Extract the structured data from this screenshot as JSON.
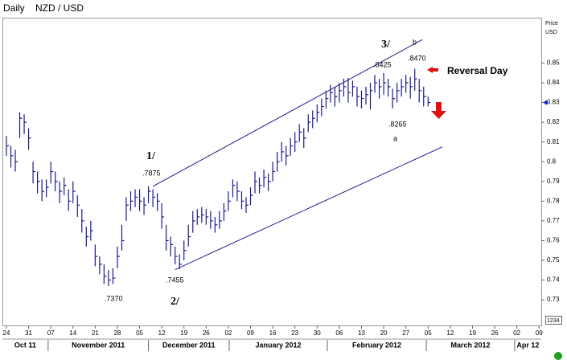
{
  "chart_data": {
    "type": "ohlc",
    "period": "Daily",
    "title": "NZD / USD",
    "y_label": [
      "Price",
      "USD"
    ],
    "widget_label": "1234",
    "color": "#1a1a8c",
    "xlim": [
      -0.9,
      120.5
    ],
    "xticks": [
      {
        "value": 0,
        "label": "24"
      },
      {
        "value": 5,
        "label": "31"
      },
      {
        "value": 10,
        "label": "07"
      },
      {
        "value": 15,
        "label": "14"
      },
      {
        "value": 20,
        "label": "21"
      },
      {
        "value": 25,
        "label": "28"
      },
      {
        "value": 30,
        "label": "05"
      },
      {
        "value": 35,
        "label": "12"
      },
      {
        "value": 40,
        "label": "19"
      },
      {
        "value": 45,
        "label": "26"
      },
      {
        "value": 50,
        "label": "02"
      },
      {
        "value": 55,
        "label": "09"
      },
      {
        "value": 60,
        "label": "16"
      },
      {
        "value": 65,
        "label": "23"
      },
      {
        "value": 70,
        "label": "30"
      },
      {
        "value": 75,
        "label": "06"
      },
      {
        "value": 80,
        "label": "13"
      },
      {
        "value": 85,
        "label": "20"
      },
      {
        "value": 90,
        "label": "27"
      },
      {
        "value": 95,
        "label": "05"
      },
      {
        "value": 100,
        "label": "12"
      },
      {
        "value": 105,
        "label": "19"
      },
      {
        "value": 110,
        "label": "26"
      },
      {
        "value": 115,
        "label": "02"
      },
      {
        "value": 120,
        "label": "09"
      }
    ],
    "months": [
      {
        "label": "Oct 11",
        "start": -0.9,
        "end": 9.4
      },
      {
        "label": "November 2011",
        "start": 9.4,
        "end": 32
      },
      {
        "label": "December 2011",
        "start": 32,
        "end": 50.2
      },
      {
        "label": "January 2012",
        "start": 50.2,
        "end": 72.3
      },
      {
        "label": "February 2012",
        "start": 72.3,
        "end": 94.6
      },
      {
        "label": "March 2012",
        "start": 94.6,
        "end": 114.5
      },
      {
        "label": "Apr 12",
        "start": 114.5,
        "end": 120.5
      }
    ],
    "ylim": [
      0.717,
      0.873
    ],
    "yticks": [
      0.73,
      0.74,
      0.75,
      0.76,
      0.77,
      0.78,
      0.79,
      0.8,
      0.81,
      0.82,
      0.83,
      0.84,
      0.85
    ],
    "last_price": 0.83,
    "high": [
      0.813,
      0.808,
      0.806,
      0.825,
      0.824,
      0.817,
      0.8,
      0.795,
      0.791,
      0.791,
      0.8,
      0.795,
      0.79,
      0.792,
      0.786,
      0.79,
      0.783,
      0.776,
      0.767,
      0.77,
      0.758,
      0.752,
      0.748,
      0.745,
      0.746,
      0.757,
      0.768,
      0.782,
      0.785,
      0.786,
      0.786,
      0.782,
      0.7875,
      0.786,
      0.784,
      0.779,
      0.768,
      0.762,
      0.757,
      0.753,
      0.76,
      0.768,
      0.775,
      0.776,
      0.777,
      0.776,
      0.775,
      0.772,
      0.775,
      0.779,
      0.785,
      0.791,
      0.79,
      0.785,
      0.782,
      0.787,
      0.795,
      0.792,
      0.796,
      0.794,
      0.8,
      0.805,
      0.81,
      0.808,
      0.812,
      0.815,
      0.819,
      0.817,
      0.824,
      0.826,
      0.829,
      0.832,
      0.836,
      0.839,
      0.838,
      0.84,
      0.842,
      0.8425,
      0.841,
      0.838,
      0.836,
      0.838,
      0.84,
      0.844,
      0.842,
      0.845,
      0.842,
      0.837,
      0.84,
      0.842,
      0.844,
      0.843,
      0.847,
      0.842,
      0.838,
      0.833
    ],
    "low": [
      0.803,
      0.797,
      0.795,
      0.812,
      0.814,
      0.806,
      0.789,
      0.784,
      0.78,
      0.782,
      0.789,
      0.785,
      0.779,
      0.783,
      0.775,
      0.779,
      0.772,
      0.764,
      0.757,
      0.76,
      0.747,
      0.743,
      0.738,
      0.737,
      0.738,
      0.746,
      0.755,
      0.77,
      0.775,
      0.777,
      0.775,
      0.773,
      0.779,
      0.777,
      0.775,
      0.766,
      0.755,
      0.752,
      0.748,
      0.7455,
      0.75,
      0.757,
      0.764,
      0.768,
      0.769,
      0.768,
      0.766,
      0.764,
      0.766,
      0.77,
      0.775,
      0.782,
      0.78,
      0.776,
      0.774,
      0.778,
      0.784,
      0.784,
      0.787,
      0.785,
      0.79,
      0.795,
      0.8,
      0.798,
      0.803,
      0.805,
      0.81,
      0.807,
      0.815,
      0.817,
      0.82,
      0.823,
      0.827,
      0.83,
      0.828,
      0.83,
      0.833,
      0.83,
      0.833,
      0.828,
      0.827,
      0.829,
      0.8265,
      0.835,
      0.832,
      0.834,
      0.833,
      0.827,
      0.83,
      0.833,
      0.835,
      0.832,
      0.836,
      0.83,
      0.828,
      0.828
    ],
    "close": [
      0.808,
      0.803,
      0.8,
      0.822,
      0.82,
      0.812,
      0.795,
      0.79,
      0.785,
      0.787,
      0.795,
      0.79,
      0.785,
      0.788,
      0.78,
      0.785,
      0.778,
      0.77,
      0.762,
      0.765,
      0.752,
      0.748,
      0.742,
      0.74,
      0.741,
      0.752,
      0.76,
      0.778,
      0.78,
      0.782,
      0.78,
      0.778,
      0.785,
      0.782,
      0.78,
      0.772,
      0.76,
      0.758,
      0.752,
      0.748,
      0.755,
      0.762,
      0.77,
      0.772,
      0.773,
      0.772,
      0.77,
      0.768,
      0.77,
      0.775,
      0.78,
      0.788,
      0.785,
      0.78,
      0.778,
      0.783,
      0.79,
      0.788,
      0.792,
      0.79,
      0.795,
      0.8,
      0.805,
      0.803,
      0.808,
      0.81,
      0.815,
      0.812,
      0.82,
      0.822,
      0.825,
      0.828,
      0.832,
      0.835,
      0.833,
      0.836,
      0.838,
      0.835,
      0.838,
      0.833,
      0.832,
      0.834,
      0.836,
      0.84,
      0.838,
      0.84,
      0.838,
      0.832,
      0.836,
      0.838,
      0.84,
      0.838,
      0.842,
      0.836,
      0.833,
      0.83
    ],
    "trendlines": [
      {
        "x": [
          33,
          93.7
        ],
        "y": [
          0.7875,
          0.8619
        ]
      },
      {
        "x": [
          38,
          98.2
        ],
        "y": [
          0.7453,
          0.8075
        ]
      }
    ],
    "annotations": [
      "1/",
      ".7875",
      ".7370",
      ".7455",
      "2/",
      "3/",
      ".8425",
      "b",
      ".8470",
      "Reversal Day",
      ".8265",
      "a"
    ]
  }
}
